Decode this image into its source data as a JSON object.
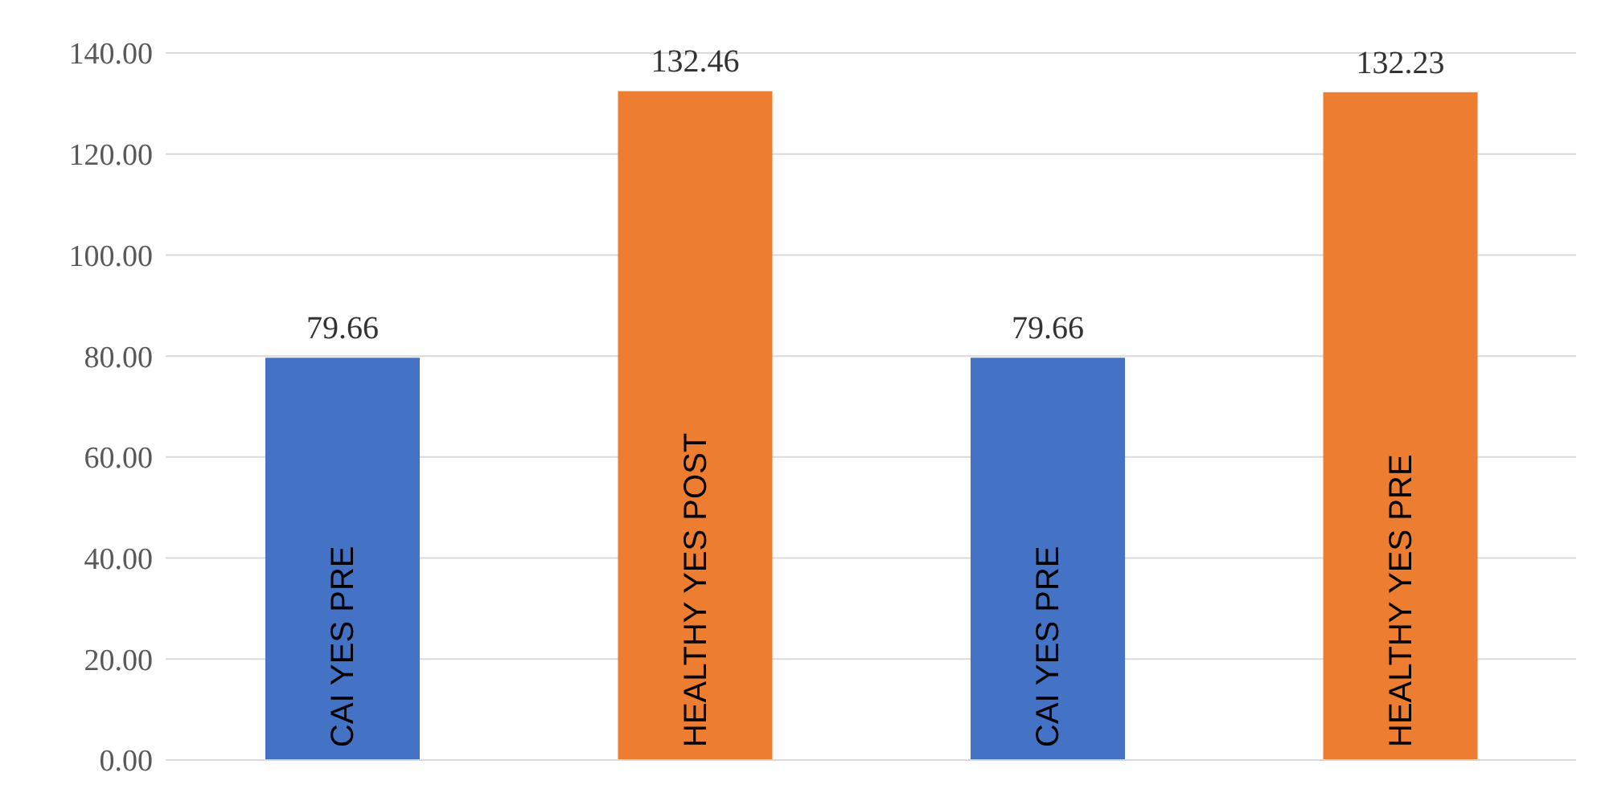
{
  "chart_data": {
    "type": "bar",
    "categories": [
      "CAI YES PRE",
      "HEALTHY YES POST",
      "CAI YES PRE",
      "HEALTHY YES PRE"
    ],
    "values": [
      79.66,
      132.46,
      79.66,
      132.23
    ],
    "colors": [
      "#4472c4",
      "#ed7d31",
      "#4472c4",
      "#ed7d31"
    ],
    "ylim": [
      0,
      140
    ],
    "yticks": [
      {
        "value": 0,
        "label": "0.00"
      },
      {
        "value": 20,
        "label": "20.00"
      },
      {
        "value": 40,
        "label": "40.00"
      },
      {
        "value": 60,
        "label": "60.00"
      },
      {
        "value": 80,
        "label": "80.00"
      },
      {
        "value": 100,
        "label": "100.00"
      },
      {
        "value": 120,
        "label": "120.00"
      },
      {
        "value": 140,
        "label": "140.00"
      }
    ],
    "grid": "y",
    "data_labels": true
  }
}
